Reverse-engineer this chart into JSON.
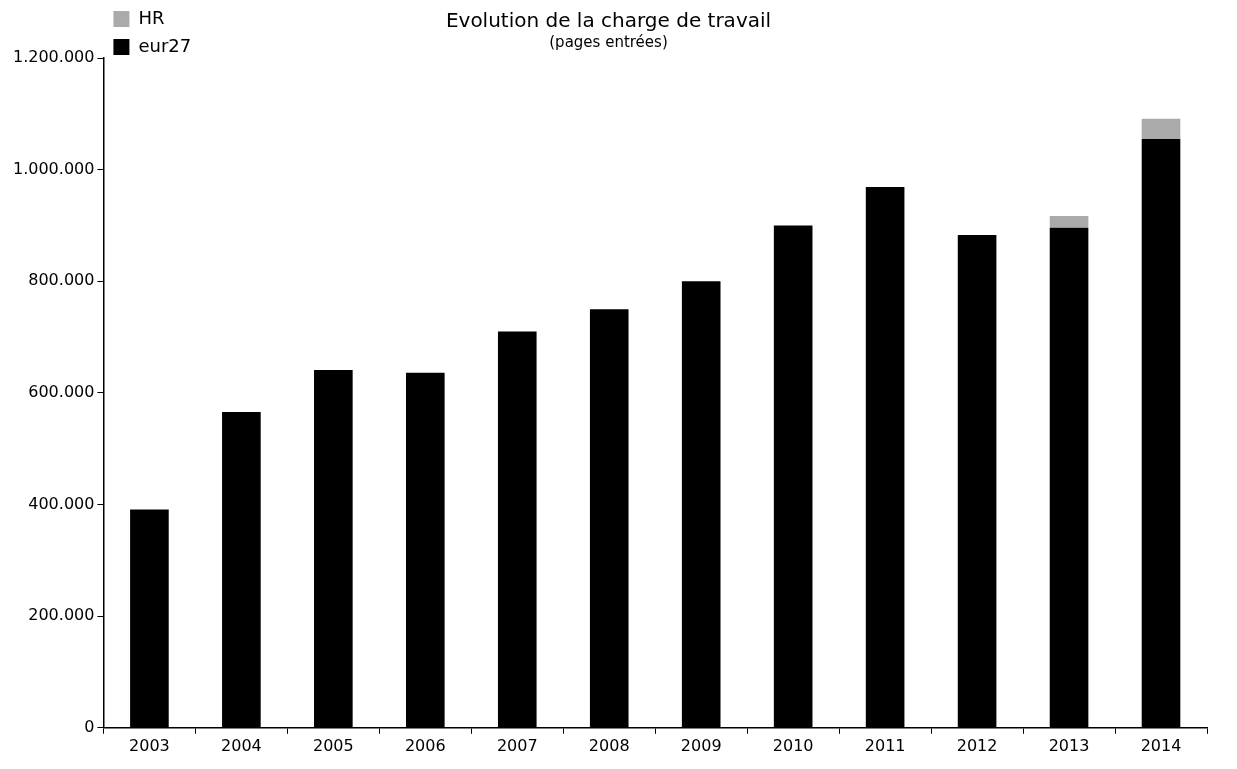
{
  "chart_data": {
    "type": "bar",
    "title": "Evolution de la charge de travail",
    "subtitle": "(pages entrées)",
    "categories": [
      "2003",
      "2004",
      "2005",
      "2006",
      "2007",
      "2008",
      "2009",
      "2010",
      "2011",
      "2012",
      "2013",
      "2014"
    ],
    "series": [
      {
        "name": "eur27",
        "color": "#000000",
        "values": [
          391000,
          566000,
          641000,
          636000,
          710000,
          750000,
          800000,
          900000,
          969000,
          883000,
          896000,
          1055000
        ]
      },
      {
        "name": "HR",
        "color": "#aaaaaa",
        "values": [
          null,
          null,
          null,
          null,
          null,
          null,
          null,
          null,
          null,
          null,
          21000,
          36000
        ]
      }
    ],
    "stacked": true,
    "ylim": [
      0,
      1200000
    ],
    "yticks": [
      {
        "value": 0,
        "label": "0"
      },
      {
        "value": 200000,
        "label": "200.000"
      },
      {
        "value": 400000,
        "label": "400.000"
      },
      {
        "value": 600000,
        "label": "600.000"
      },
      {
        "value": 800000,
        "label": "800.000"
      },
      {
        "value": 1000000,
        "label": "1.000.000"
      },
      {
        "value": 1200000,
        "label": "1.200.000"
      }
    ],
    "grid": false,
    "legend": "top left"
  }
}
